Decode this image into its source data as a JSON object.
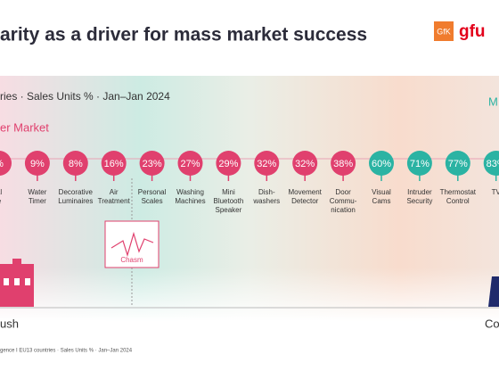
{
  "header": {
    "title": "arity as a driver for mass market success",
    "logo_left": "GfK",
    "logo_right": "gfu"
  },
  "subtitle": "ries · Sales Units % · Jan–Jan 2024",
  "left_label": "er Market",
  "right_label": "M",
  "chasm": "Chasm",
  "bottom_left": "ush",
  "bottom_right": "Co",
  "footer": "gence I EU13 countries · Sales Units % · Jan–Jan 2024",
  "items": [
    {
      "value": "%",
      "label": [
        "al",
        "e"
      ],
      "color": "#e0406e"
    },
    {
      "value": "9%",
      "label": [
        "Water",
        "Timer"
      ],
      "color": "#e0406e"
    },
    {
      "value": "8%",
      "label": [
        "Decorative",
        "Luminaires"
      ],
      "color": "#e0406e"
    },
    {
      "value": "16%",
      "label": [
        "Air",
        "Treatment"
      ],
      "color": "#e0406e"
    },
    {
      "value": "23%",
      "label": [
        "Personal",
        "Scales"
      ],
      "color": "#e0406e"
    },
    {
      "value": "27%",
      "label": [
        "Washing",
        "Machines"
      ],
      "color": "#e0406e"
    },
    {
      "value": "29%",
      "label": [
        "Mini",
        "Bluetooth",
        "Speaker"
      ],
      "color": "#e0406e"
    },
    {
      "value": "32%",
      "label": [
        "Dish-",
        "washers"
      ],
      "color": "#e0406e"
    },
    {
      "value": "32%",
      "label": [
        "Movement",
        "Detector"
      ],
      "color": "#e0406e"
    },
    {
      "value": "38%",
      "label": [
        "Door",
        "Commu-",
        "nication"
      ],
      "color": "#e0406e"
    },
    {
      "value": "60%",
      "label": [
        "Visual",
        "Cams"
      ],
      "color": "#2bb3a3"
    },
    {
      "value": "71%",
      "label": [
        "Intruder",
        "Security"
      ],
      "color": "#2bb3a3"
    },
    {
      "value": "77%",
      "label": [
        "Thermostat",
        "Control"
      ],
      "color": "#2bb3a3"
    },
    {
      "value": "83%",
      "label": [
        "TV"
      ],
      "color": "#2bb3a3"
    }
  ]
}
